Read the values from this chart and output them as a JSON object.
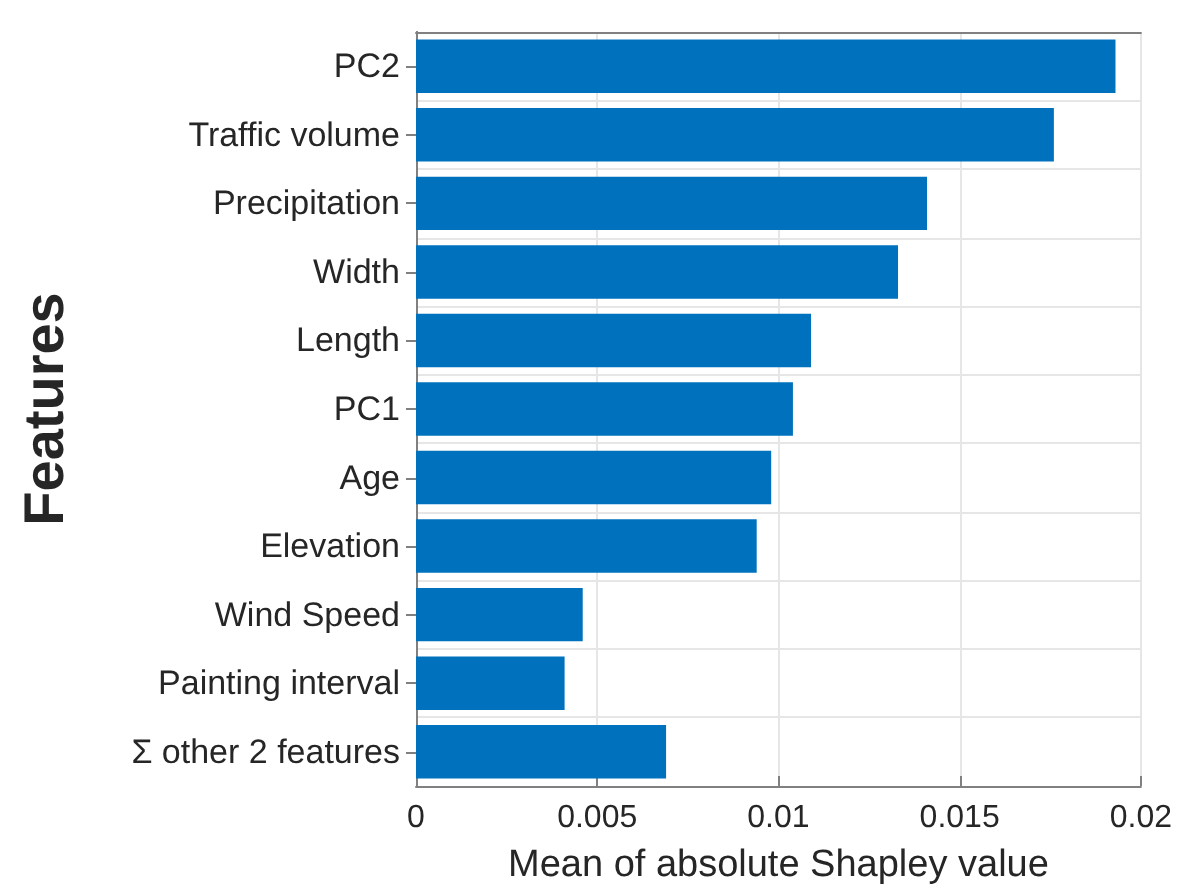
{
  "chart_data": {
    "type": "bar",
    "orientation": "horizontal",
    "xlabel": "Mean of absolute Shapley value",
    "ylabel": "Features",
    "categories": [
      "PC2",
      "Traffic volume",
      "Precipitation",
      "Width",
      "Length",
      "PC1",
      "Age",
      "Elevation",
      "Wind Speed",
      "Painting interval",
      "Σ other 2 features"
    ],
    "values": [
      0.0193,
      0.0176,
      0.0141,
      0.0133,
      0.0109,
      0.0104,
      0.0098,
      0.0094,
      0.0046,
      0.0041,
      0.0069
    ],
    "color": "#0072bd",
    "xlim": [
      0,
      0.02
    ],
    "xticks": [
      0,
      0.005,
      0.01,
      0.015,
      0.02
    ],
    "grid": true
  }
}
